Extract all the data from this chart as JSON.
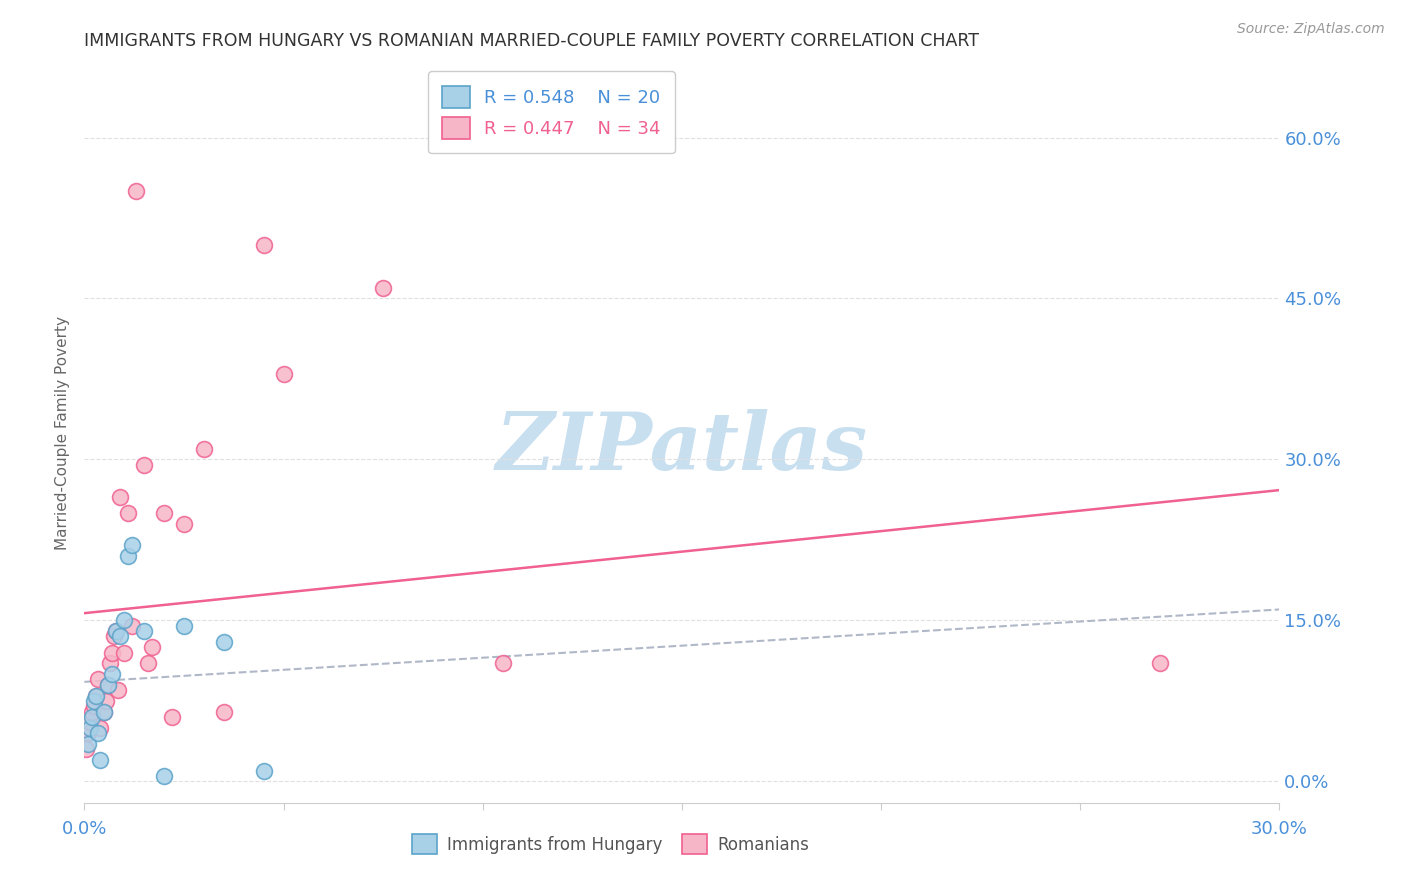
{
  "title": "IMMIGRANTS FROM HUNGARY VS ROMANIAN MARRIED-COUPLE FAMILY POVERTY CORRELATION CHART",
  "source": "Source: ZipAtlas.com",
  "ylabel": "Married-Couple Family Poverty",
  "ytick_values": [
    0.0,
    15.0,
    30.0,
    45.0,
    60.0
  ],
  "xlim": [
    0.0,
    30.0
  ],
  "ylim": [
    -2.0,
    67.0
  ],
  "legend_r1": "R = 0.548",
  "legend_n1": "N = 20",
  "legend_r2": "R = 0.447",
  "legend_n2": "N = 34",
  "color_hungary": "#a8d1e8",
  "color_romania": "#f7b6c8",
  "color_hungary_edge": "#5ba3c9",
  "color_romania_edge": "#f06090",
  "color_trendline_hungary": "#b0b8c8",
  "color_trendline_romania": "#f06090",
  "hungary_x": [
    0.1,
    0.15,
    0.2,
    0.25,
    0.3,
    0.35,
    0.4,
    0.5,
    0.6,
    0.7,
    0.8,
    0.9,
    1.0,
    1.1,
    1.2,
    1.5,
    2.0,
    2.5,
    3.5,
    4.5
  ],
  "hungary_y": [
    3.5,
    5.0,
    6.0,
    7.5,
    8.0,
    4.5,
    2.0,
    6.5,
    9.0,
    10.0,
    14.0,
    13.5,
    15.0,
    21.0,
    22.0,
    14.0,
    0.5,
    14.5,
    13.0,
    1.0
  ],
  "romania_x": [
    0.05,
    0.1,
    0.15,
    0.2,
    0.25,
    0.3,
    0.35,
    0.4,
    0.5,
    0.55,
    0.6,
    0.65,
    0.7,
    0.75,
    0.8,
    0.85,
    0.9,
    1.0,
    1.1,
    1.2,
    1.3,
    1.5,
    1.6,
    1.7,
    2.0,
    2.2,
    2.5,
    3.0,
    3.5,
    4.5,
    5.0,
    7.5,
    10.5,
    27.0
  ],
  "romania_y": [
    3.0,
    4.5,
    5.5,
    6.5,
    7.0,
    8.0,
    9.5,
    5.0,
    6.5,
    7.5,
    9.0,
    11.0,
    12.0,
    13.5,
    14.0,
    8.5,
    26.5,
    12.0,
    25.0,
    14.5,
    55.0,
    29.5,
    11.0,
    12.5,
    25.0,
    6.0,
    24.0,
    31.0,
    6.5,
    50.0,
    38.0,
    46.0,
    11.0,
    11.0
  ],
  "watermark_text": "ZIPatlas",
  "watermark_color": "#c8dff0",
  "background_color": "#ffffff",
  "grid_color": "#e0e0e0",
  "title_color": "#333333",
  "ylabel_color": "#666666",
  "tick_label_color": "#4a90d9",
  "source_color": "#999999"
}
